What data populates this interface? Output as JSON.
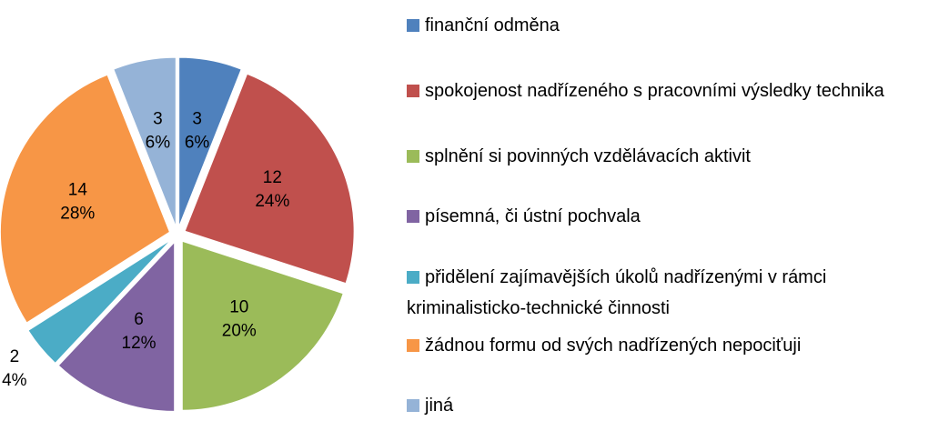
{
  "chart_data": {
    "type": "pie",
    "categories": [
      "finanční odměna",
      "spokojenost nadřízeného s pracovními výsledky technika",
      "splnění si povinných vzdělávacích aktivit",
      "písemná, či ústní pochvala",
      "přidělení zajímavějších úkolů nadřízenými v rámci kriminalisticko-technické činnosti",
      "žádnou formu od svých nadřízených nepociťuji",
      "jiná"
    ],
    "values": [
      3,
      12,
      10,
      6,
      2,
      14,
      3
    ],
    "percent_labels": [
      "6%",
      "24%",
      "20%",
      "12%",
      "4%",
      "28%",
      "6%"
    ],
    "colors": [
      "#4f81bd",
      "#c0504d",
      "#9bbb59",
      "#8064a2",
      "#4bacc6",
      "#f79646",
      "#95b3d7"
    ],
    "legend": "right"
  }
}
